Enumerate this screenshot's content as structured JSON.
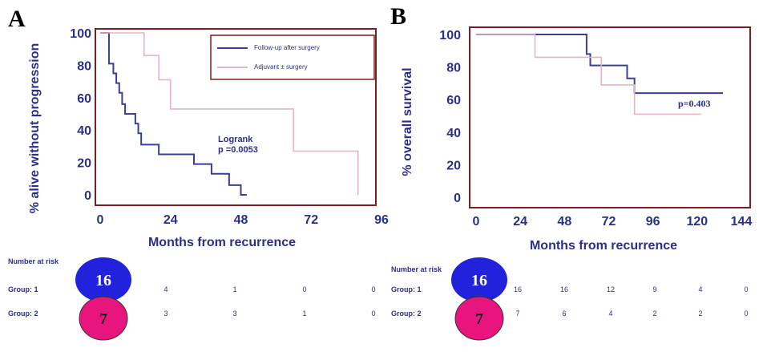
{
  "chart_data": [
    {
      "type": "line",
      "panel": "A",
      "ylabel": "% alive without progression",
      "xlabel": "Months from recurrence",
      "xlim": [
        0,
        96
      ],
      "ylim": [
        0,
        100
      ],
      "x_ticks": [
        "0",
        "24",
        "48",
        "72",
        "96"
      ],
      "y_ticks": [
        "0",
        "20",
        "40",
        "60",
        "80",
        "100"
      ],
      "grid": false,
      "legend_position": "top-right",
      "annotations": [
        "Logrank",
        "p =0.0053"
      ],
      "series": [
        {
          "name": "Follow-up after surgery",
          "color": "#3a3f9a",
          "points": [
            [
              0,
              100
            ],
            [
              3,
              100
            ],
            [
              3,
              81
            ],
            [
              4.5,
              81
            ],
            [
              4.5,
              75
            ],
            [
              5.5,
              75
            ],
            [
              5.5,
              69
            ],
            [
              6.5,
              69
            ],
            [
              6.5,
              63
            ],
            [
              7.5,
              63
            ],
            [
              7.5,
              56
            ],
            [
              8.5,
              56
            ],
            [
              8.5,
              50
            ],
            [
              12,
              50
            ],
            [
              12,
              44
            ],
            [
              13,
              44
            ],
            [
              13,
              38
            ],
            [
              14,
              38
            ],
            [
              14,
              31
            ],
            [
              20,
              31
            ],
            [
              20,
              25
            ],
            [
              32,
              25
            ],
            [
              32,
              19
            ],
            [
              38,
              19
            ],
            [
              38,
              13
            ],
            [
              44,
              13
            ],
            [
              44,
              6
            ],
            [
              48,
              6
            ],
            [
              48,
              0
            ],
            [
              50,
              0
            ]
          ]
        },
        {
          "name": "Adjuvant ± surgery",
          "color": "#e3b6c2",
          "points": [
            [
              0,
              100
            ],
            [
              15,
              100
            ],
            [
              15,
              86
            ],
            [
              20,
              86
            ],
            [
              20,
              71
            ],
            [
              24,
              71
            ],
            [
              24,
              53
            ],
            [
              66,
              53
            ],
            [
              66,
              27
            ],
            [
              88,
              27
            ],
            [
              88,
              0
            ]
          ]
        }
      ],
      "risk_table": {
        "title": "Number at risk",
        "rows": [
          {
            "label": "Group: 1",
            "circle": "16",
            "circle_color": "#2222dd",
            "values": [
              "4",
              "1",
              "0",
              "0"
            ]
          },
          {
            "label": "Group: 2",
            "circle": "7",
            "circle_color": "#e8157e",
            "values": [
              "3",
              "3",
              "1",
              "0"
            ]
          }
        ]
      }
    },
    {
      "type": "line",
      "panel": "B",
      "ylabel": "% overall survival",
      "xlabel": "Months from recurrence",
      "xlim": [
        0,
        144
      ],
      "ylim": [
        0,
        100
      ],
      "x_ticks": [
        "0",
        "24",
        "48",
        "72",
        "96",
        "120",
        "144"
      ],
      "y_ticks": [
        "0",
        "20",
        "40",
        "60",
        "80",
        "100"
      ],
      "grid": false,
      "annotations": [
        "p=0.403"
      ],
      "series": [
        {
          "color": "#3a3f9a",
          "points": [
            [
              0,
              100
            ],
            [
              60,
              100
            ],
            [
              60,
              88
            ],
            [
              62,
              88
            ],
            [
              62,
              81
            ],
            [
              82,
              81
            ],
            [
              82,
              73
            ],
            [
              86,
              73
            ],
            [
              86,
              64
            ],
            [
              134,
              64
            ]
          ]
        },
        {
          "color": "#e3b6c2",
          "points": [
            [
              0,
              100
            ],
            [
              32,
              100
            ],
            [
              32,
              86
            ],
            [
              68,
              86
            ],
            [
              68,
              69
            ],
            [
              86,
              69
            ],
            [
              86,
              51
            ],
            [
              122,
              51
            ]
          ]
        }
      ],
      "risk_table": {
        "title": "Number at risk",
        "rows": [
          {
            "label": "Group: 1",
            "circle": "16",
            "circle_color": "#2222dd",
            "values": [
              "16",
              "16",
              "12",
              "9",
              "4",
              "0"
            ]
          },
          {
            "label": "Group: 2",
            "circle": "7",
            "circle_color": "#e8157e",
            "values": [
              "7",
              "6",
              "4",
              "2",
              "2",
              "0"
            ]
          }
        ]
      }
    }
  ]
}
